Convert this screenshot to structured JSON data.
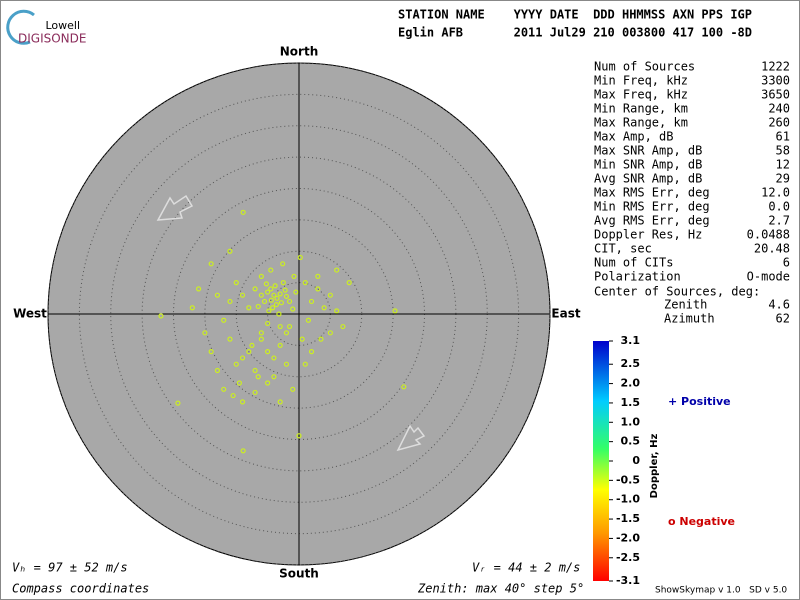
{
  "header": {
    "logo_top": "Lowell",
    "logo_bottom": "DIGISONDE",
    "line1": "STATION NAME    YYYY DATE  DDD HHMMSS AXN PPS IGP",
    "line2": "Eglin AFB       2011 Jul29 210 003800 417 100 -8D"
  },
  "stats": [
    [
      "Num of Sources",
      "1222"
    ],
    [
      "Min Freq, kHz",
      "3300"
    ],
    [
      "Max Freq, kHz",
      "3650"
    ],
    [
      "Min Range, km",
      "240"
    ],
    [
      "Max Range, km",
      "260"
    ],
    [
      "Max Amp, dB",
      "61"
    ],
    [
      "Max SNR Amp, dB",
      "58"
    ],
    [
      "Min SNR Amp, dB",
      "12"
    ],
    [
      "Avg SNR Amp, dB",
      "29"
    ],
    [
      "Max RMS Err, deg",
      "12.0"
    ],
    [
      "Min RMS Err, deg",
      "0.0"
    ],
    [
      "Avg RMS Err, deg",
      "2.7"
    ],
    [
      "Doppler Res, Hz",
      "0.0488"
    ],
    [
      "CIT, sec",
      "20.48"
    ],
    [
      "Num of CITs",
      "6"
    ],
    [
      "Polarization",
      "O-mode"
    ]
  ],
  "center": {
    "title": "Center of Sources, deg:",
    "zenith_label": "Zenith",
    "zenith": "4.6",
    "azimuth_label": "Azimuth",
    "azimuth": "62"
  },
  "compass": {
    "north": "North",
    "south": "South",
    "east": "East",
    "west": "West"
  },
  "footer": {
    "vh": "Vₕ = 97 ± 52 m/s",
    "coords": "Compass coordinates",
    "vz": "Vᵣ = 44 ± 2 m/s",
    "zenith": "Zenith: max 40°  step 5°",
    "version": "ShowSkymap v 1.0   SD v 5.0"
  },
  "colorbar": {
    "label": "Doppler, Hz",
    "ylim": [
      -3.1,
      3.1
    ],
    "yticks": [
      3.1,
      2.5,
      {
        "value": 2,
        "label": "2.0"
      },
      1.5,
      {
        "value": 1,
        "label": "1.0"
      },
      0.5,
      0,
      -0.5,
      {
        "value": -1,
        "label": "-1.0"
      },
      -1.5,
      {
        "value": -2,
        "label": "-2.0"
      },
      -2.5,
      -3.1
    ],
    "positive": "+ Positive",
    "negative": "o Negative"
  },
  "chart_data": {
    "type": "scatter",
    "color": "#ccee22",
    "xlim": [
      -40,
      40
    ],
    "ylim": [
      -40,
      40
    ],
    "rings": [
      5,
      10,
      15,
      20,
      25,
      30,
      35,
      40
    ],
    "x": [
      -4,
      -3.5,
      -5,
      -2.8,
      -4.5,
      -3,
      -5.5,
      -2,
      -4.2,
      -3.8,
      -6,
      -1.5,
      -4.8,
      -3.2,
      -2.5,
      -5.2,
      -3.6,
      -4.4,
      -2.2,
      -6.5,
      -1,
      -7,
      -0.5,
      1,
      2,
      3,
      -8,
      -9,
      -3,
      -5,
      4,
      5,
      6,
      -10,
      -11,
      -2,
      0.5,
      1.5,
      -6,
      -7.5,
      -8,
      -9,
      -10,
      -7,
      -6,
      -5,
      -4,
      -3,
      -11,
      -12,
      -6.5,
      -9.5,
      -13,
      -14,
      -4,
      -2,
      -1,
      3.5,
      7,
      -8.9,
      15.3,
      16.7,
      -19.3,
      -8.9,
      0,
      -22,
      -16,
      -14,
      6,
      8,
      -12,
      -10.5,
      -7,
      -5,
      -3,
      1,
      2,
      -1.5,
      -6,
      -15,
      -13,
      -4.5,
      -2.6,
      0.2,
      -0.8,
      -17,
      -11,
      5,
      3,
      -9
    ],
    "y": [
      3,
      2.5,
      3.5,
      1.8,
      4,
      3.2,
      2,
      2.8,
      1,
      4.5,
      3,
      2,
      0.5,
      0,
      5,
      4.8,
      1.5,
      2.2,
      3.8,
      1.2,
      0.8,
      4,
      3.5,
      5,
      2,
      6,
      1,
      3,
      -2,
      -1.5,
      1,
      3,
      0.5,
      5,
      2,
      -3,
      -4,
      -1,
      -4,
      -5,
      -6,
      -7,
      -8,
      -9,
      -3,
      -6,
      -7,
      -5,
      -4,
      -1,
      -10,
      -11,
      -9,
      -6,
      -10,
      -8,
      -12,
      -4,
      -2,
      16.2,
      0.5,
      -11.6,
      -14.2,
      -21.8,
      -19.4,
      -0.3,
      4,
      8,
      7,
      5,
      -12,
      -13,
      -12.5,
      -11,
      -14,
      -8,
      -6,
      -2,
      6,
      -3,
      3,
      7,
      8,
      9,
      6,
      1,
      10,
      -3,
      4,
      -14
    ]
  }
}
